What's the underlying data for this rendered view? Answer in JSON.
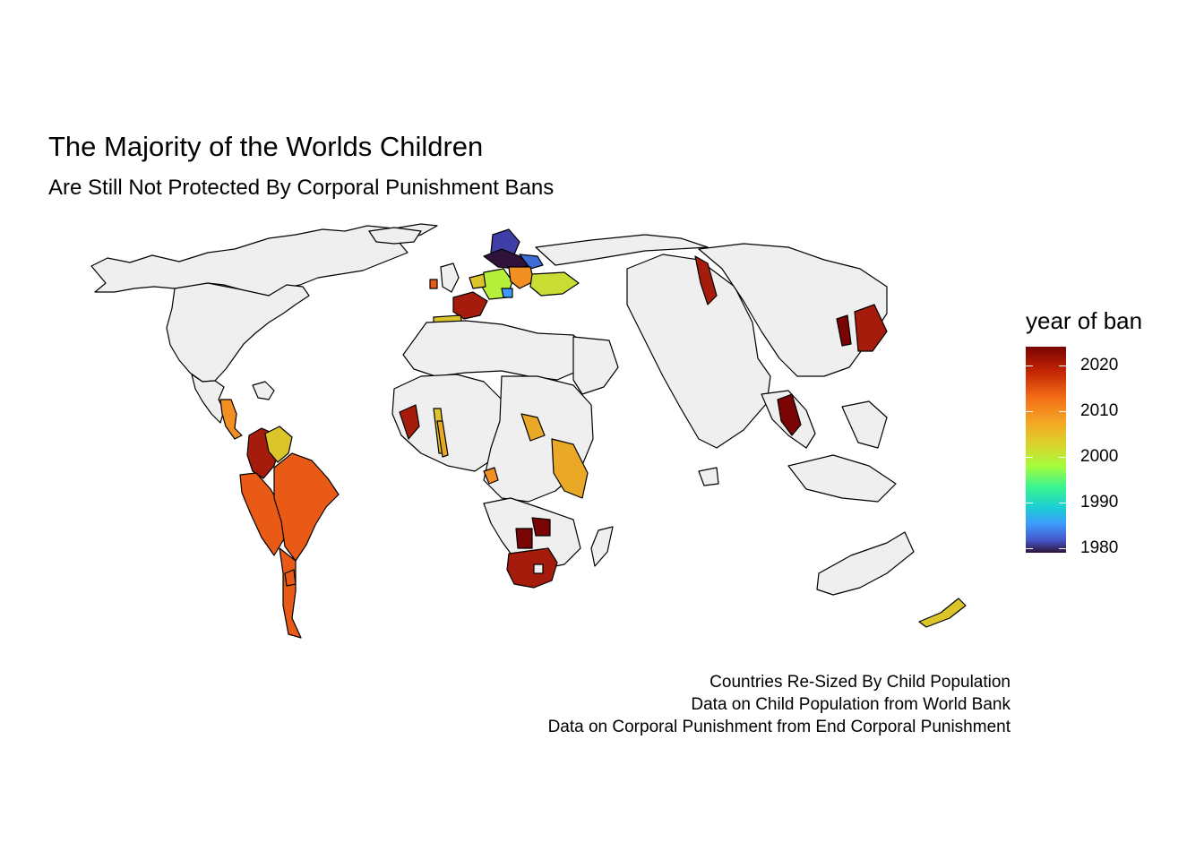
{
  "title": "The Majority of the Worlds Children",
  "subtitle": "Are Still Not Protected By Corporal Punishment Bans",
  "legend": {
    "title": "year of ban",
    "ticks": [
      "2020",
      "2010",
      "2000",
      "1990",
      "1980"
    ],
    "range": [
      1979,
      2023
    ],
    "palette": "turbo"
  },
  "caption": {
    "line1": "Countries Re-Sized By Child Population",
    "line2": "Data on Child Population from World Bank",
    "line3": "Data on Corporal Punishment from End Corporal Punishment"
  },
  "colors": {
    "no_ban": "#efefef",
    "outline": "#000000",
    "y2020": "#7a0403",
    "y2017": "#a51c0c",
    "y2015": "#e85a15",
    "y2013": "#f28f22",
    "y2011": "#e9a826",
    "y2007": "#dcc52a",
    "y2005": "#b6f03a",
    "y1990": "#3e6dd8",
    "y1983": "#3f3ea6",
    "y1979": "#30123b"
  }
}
